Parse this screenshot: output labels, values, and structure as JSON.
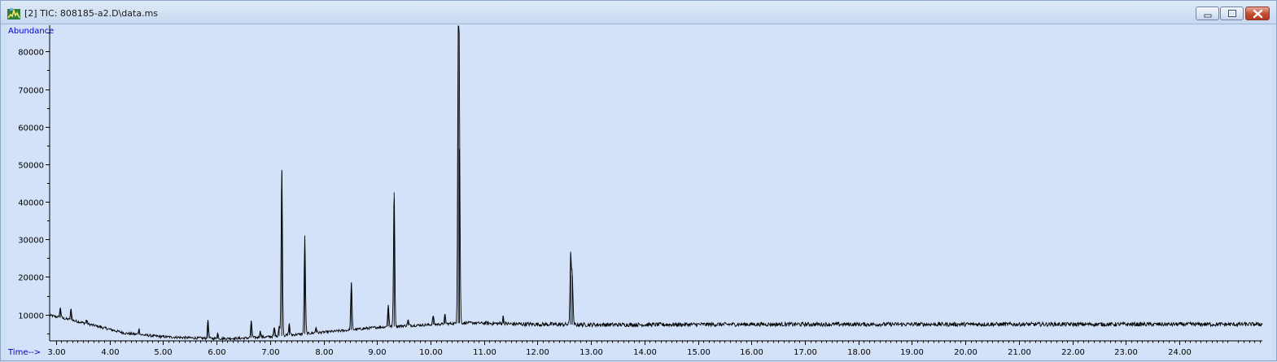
{
  "window": {
    "title": "[2] TIC: 808185-a2.D\\data.ms",
    "icon": "chromatogram-app-icon",
    "controls": {
      "minimize": "minimize-icon",
      "maximize": "maximize-icon",
      "close": "close-icon"
    }
  },
  "chart_data": {
    "type": "line",
    "title": "",
    "ylabel": "Abundance",
    "xlabel": "Time-->",
    "xlim": [
      2.88,
      25.55
    ],
    "ylim": [
      3000,
      87000
    ],
    "x_ticks": [
      "3.00",
      "4.00",
      "5.00",
      "6.00",
      "7.00",
      "8.00",
      "9.00",
      "10.00",
      "11.00",
      "12.00",
      "13.00",
      "14.00",
      "15.00",
      "16.00",
      "17.00",
      "18.00",
      "19.00",
      "20.00",
      "21.00",
      "22.00",
      "23.00",
      "24.00"
    ],
    "y_ticks": [
      "10000",
      "20000",
      "30000",
      "40000",
      "50000",
      "60000",
      "70000",
      "80000"
    ],
    "grid": false,
    "line_color": "#000000",
    "axis_label_color": "#0000cc",
    "baseline_points": {
      "x": [
        2.88,
        3.3,
        3.8,
        4.3,
        5.0,
        5.5,
        6.0,
        6.5,
        7.0,
        7.5,
        8.0,
        8.5,
        9.0,
        9.5,
        10.0,
        10.4,
        10.7,
        11.0,
        11.5,
        12.0,
        13.0,
        14.0,
        16.0,
        18.0,
        20.0,
        22.0,
        24.0,
        25.55
      ],
      "y": [
        9800,
        8500,
        6800,
        5000,
        4100,
        3800,
        3600,
        3700,
        4100,
        4700,
        5300,
        5900,
        6600,
        7000,
        7300,
        7600,
        7800,
        7700,
        7500,
        7400,
        7300,
        7300,
        7400,
        7400,
        7400,
        7400,
        7400,
        7400
      ]
    },
    "peaks": [
      {
        "x": 3.08,
        "height": 11800
      },
      {
        "x": 3.28,
        "height": 11400
      },
      {
        "x": 3.57,
        "height": 8600
      },
      {
        "x": 4.55,
        "height": 6200
      },
      {
        "x": 5.84,
        "height": 8600
      },
      {
        "x": 6.02,
        "height": 5000
      },
      {
        "x": 6.65,
        "height": 8200
      },
      {
        "x": 6.82,
        "height": 5600
      },
      {
        "x": 7.08,
        "height": 6500
      },
      {
        "x": 7.17,
        "height": 7000
      },
      {
        "x": 7.22,
        "height": 48500
      },
      {
        "x": 7.36,
        "height": 7600
      },
      {
        "x": 7.65,
        "height": 30800
      },
      {
        "x": 7.86,
        "height": 6600
      },
      {
        "x": 8.52,
        "height": 18500
      },
      {
        "x": 9.21,
        "height": 12500
      },
      {
        "x": 9.32,
        "height": 42500
      },
      {
        "x": 9.58,
        "height": 8500
      },
      {
        "x": 10.05,
        "height": 9700
      },
      {
        "x": 10.27,
        "height": 9900
      },
      {
        "x": 10.52,
        "height": 86200
      },
      {
        "x": 10.54,
        "height": 54000
      },
      {
        "x": 11.36,
        "height": 9500
      },
      {
        "x": 12.62,
        "height": 26300
      },
      {
        "x": 12.65,
        "height": 20500
      }
    ]
  }
}
